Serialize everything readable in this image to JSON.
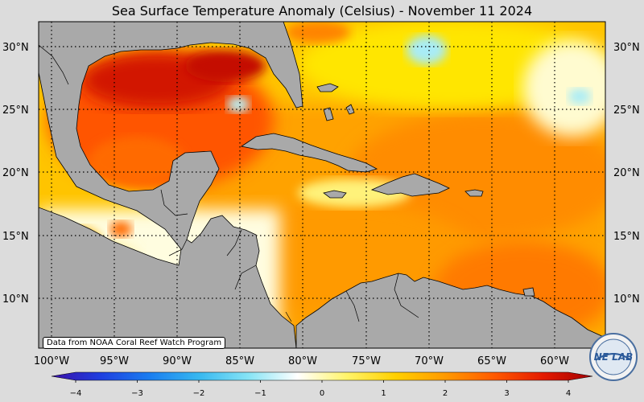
{
  "title": "Sea Surface Temperature Anomaly (Celsius) - November 11 2024",
  "credit": "Data from NOAA Coral Reef Watch Program",
  "logo_text": "NESDIS LAB",
  "lat_labels": [
    "30°N",
    "25°N",
    "20°N",
    "15°N",
    "10°N"
  ],
  "lon_labels": [
    "100°W",
    "95°W",
    "90°W",
    "85°W",
    "80°W",
    "75°W",
    "70°W",
    "65°W",
    "60°W"
  ],
  "colorbar": {
    "ticks": [
      "−4",
      "−3",
      "−2",
      "−1",
      "0",
      "1",
      "2",
      "3",
      "4"
    ],
    "range": [
      -4,
      4
    ],
    "colors": [
      "#3a0fa8",
      "#1f3fe0",
      "#1a7ef0",
      "#37b8f0",
      "#86e4f5",
      "#ffffff",
      "#fff46a",
      "#ffd000",
      "#ff9a00",
      "#ff5a00",
      "#e41a00",
      "#a30000"
    ]
  },
  "colors": {
    "land": "#a9a9a9",
    "ocean_warm": "#ff9500",
    "ocean_mild": "#ffd200",
    "ocean_hot": "#e92b00",
    "ocean_cool": "#4ec0f2",
    "background": "#dcdcdc"
  }
}
